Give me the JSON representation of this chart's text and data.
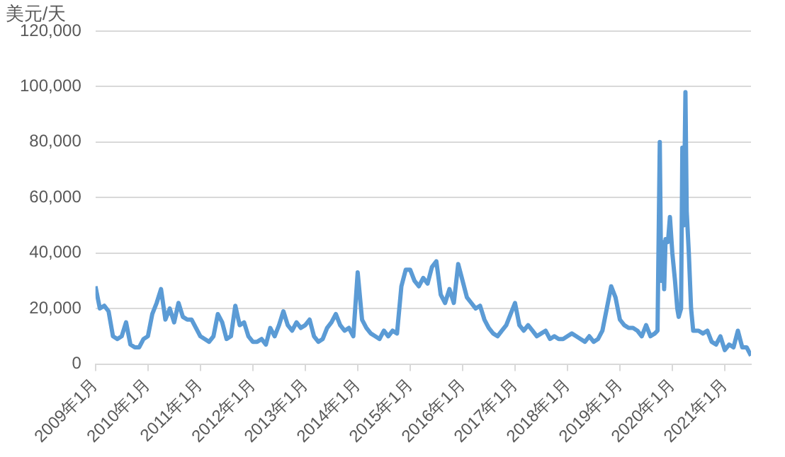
{
  "chart_data": {
    "type": "line",
    "ylabel": "美元/天",
    "grid": "y",
    "legend": false,
    "marker": "none",
    "line_style": "solid",
    "xlim": [
      "2009-01",
      "2021-07"
    ],
    "xticks": [
      {
        "value": "2009-01",
        "label": "2009年1月"
      },
      {
        "value": "2010-01",
        "label": "2010年1月"
      },
      {
        "value": "2011-01",
        "label": "2011年1月"
      },
      {
        "value": "2012-01",
        "label": "2012年1月"
      },
      {
        "value": "2013-01",
        "label": "2013年1月"
      },
      {
        "value": "2014-01",
        "label": "2014年1月"
      },
      {
        "value": "2015-01",
        "label": "2015年1月"
      },
      {
        "value": "2016-01",
        "label": "2016年1月"
      },
      {
        "value": "2017-01",
        "label": "2017年1月"
      },
      {
        "value": "2018-01",
        "label": "2018年1月"
      },
      {
        "value": "2019-01",
        "label": "2019年1月"
      },
      {
        "value": "2020-01",
        "label": "2020年1月"
      },
      {
        "value": "2021-01",
        "label": "2021年1月"
      }
    ],
    "ylim": [
      0,
      120000
    ],
    "yticks": [
      {
        "value": 0,
        "label": "0"
      },
      {
        "value": 20000,
        "label": "20,000"
      },
      {
        "value": 40000,
        "label": "40,000"
      },
      {
        "value": 60000,
        "label": "60,000"
      },
      {
        "value": 80000,
        "label": "80,000"
      },
      {
        "value": 100000,
        "label": "100,000"
      },
      {
        "value": 120000,
        "label": "120,000"
      }
    ],
    "series": [
      {
        "color": "#5b9bd5",
        "x": [
          "2009-01",
          "2009-02",
          "2009-03",
          "2009-04",
          "2009-05",
          "2009-06",
          "2009-07",
          "2009-08",
          "2009-09",
          "2009-10",
          "2009-11",
          "2009-12",
          "2010-01",
          "2010-02",
          "2010-03",
          "2010-04",
          "2010-05",
          "2010-06",
          "2010-07",
          "2010-08",
          "2010-09",
          "2010-10",
          "2010-11",
          "2010-12",
          "2011-01",
          "2011-02",
          "2011-03",
          "2011-04",
          "2011-05",
          "2011-06",
          "2011-07",
          "2011-08",
          "2011-09",
          "2011-10",
          "2011-11",
          "2011-12",
          "2012-01",
          "2012-02",
          "2012-03",
          "2012-04",
          "2012-05",
          "2012-06",
          "2012-07",
          "2012-08",
          "2012-09",
          "2012-10",
          "2012-11",
          "2012-12",
          "2013-01",
          "2013-02",
          "2013-03",
          "2013-04",
          "2013-05",
          "2013-06",
          "2013-07",
          "2013-08",
          "2013-09",
          "2013-10",
          "2013-11",
          "2013-12",
          "2014-01",
          "2014-02",
          "2014-03",
          "2014-04",
          "2014-05",
          "2014-06",
          "2014-07",
          "2014-08",
          "2014-09",
          "2014-10",
          "2014-11",
          "2014-12",
          "2015-01",
          "2015-02",
          "2015-03",
          "2015-04",
          "2015-05",
          "2015-06",
          "2015-07",
          "2015-08",
          "2015-09",
          "2015-10",
          "2015-11",
          "2015-12",
          "2016-01",
          "2016-02",
          "2016-03",
          "2016-04",
          "2016-05",
          "2016-06",
          "2016-07",
          "2016-08",
          "2016-09",
          "2016-10",
          "2016-11",
          "2016-12",
          "2017-01",
          "2017-02",
          "2017-03",
          "2017-04",
          "2017-05",
          "2017-06",
          "2017-07",
          "2017-08",
          "2017-09",
          "2017-10",
          "2017-11",
          "2017-12",
          "2018-01",
          "2018-02",
          "2018-03",
          "2018-04",
          "2018-05",
          "2018-06",
          "2018-07",
          "2018-08",
          "2018-09",
          "2018-10",
          "2018-11",
          "2018-12",
          "2019-01",
          "2019-02",
          "2019-03",
          "2019-04",
          "2019-05",
          "2019-06",
          "2019-07",
          "2019-08",
          "2019-09-01",
          "2019-09-20",
          "2019-10-05",
          "2019-10-15",
          "2019-10-25",
          "2019-11-05",
          "2019-11-15",
          "2019-12-01",
          "2019-12-15",
          "2020-01-01",
          "2020-01-20",
          "2020-02-05",
          "2020-02-15",
          "2020-03-01",
          "2020-03-10",
          "2020-03-20",
          "2020-04-01",
          "2020-04-10",
          "2020-04-25",
          "2020-05-10",
          "2020-05-25",
          "2020-07",
          "2020-08",
          "2020-09",
          "2020-10",
          "2020-11",
          "2020-12",
          "2021-01",
          "2021-02",
          "2021-03",
          "2021-04",
          "2021-05",
          "2021-06",
          "2021-07"
        ],
        "values": [
          28000,
          20000,
          21000,
          19000,
          10000,
          9000,
          10000,
          15000,
          7000,
          6000,
          6000,
          9000,
          10000,
          18000,
          22000,
          27000,
          16000,
          20000,
          15000,
          22000,
          17000,
          16000,
          16000,
          13000,
          10000,
          9000,
          8000,
          10000,
          18000,
          15000,
          9000,
          10000,
          21000,
          14000,
          15000,
          10000,
          8000,
          8000,
          9000,
          7000,
          13000,
          10000,
          14000,
          19000,
          14000,
          12000,
          15000,
          13000,
          14000,
          16000,
          10000,
          8000,
          9000,
          13000,
          15000,
          18000,
          14000,
          12000,
          13000,
          10000,
          33000,
          16000,
          13000,
          11000,
          10000,
          9000,
          12000,
          10000,
          12000,
          11000,
          28000,
          34000,
          34000,
          30000,
          28000,
          31000,
          29000,
          35000,
          37000,
          25000,
          22000,
          27000,
          22000,
          36000,
          30000,
          24000,
          22000,
          20000,
          21000,
          16000,
          13000,
          11000,
          10000,
          12000,
          14000,
          18000,
          22000,
          14000,
          12000,
          14000,
          12000,
          10000,
          11000,
          12000,
          9000,
          10000,
          9000,
          9000,
          10000,
          11000,
          10000,
          9000,
          8000,
          10000,
          8000,
          9000,
          12000,
          20000,
          28000,
          24000,
          16000,
          14000,
          13000,
          13000,
          12000,
          10000,
          14000,
          10000,
          11000,
          12000,
          80000,
          30000,
          44000,
          27000,
          45000,
          44000,
          53000,
          40000,
          30000,
          20000,
          17000,
          20000,
          78000,
          50000,
          98000,
          55000,
          40000,
          20000,
          12000,
          12000,
          11000,
          12000,
          8000,
          7000,
          10000,
          5000,
          7000,
          6000,
          12000,
          6000,
          6000,
          3000
        ]
      }
    ]
  }
}
